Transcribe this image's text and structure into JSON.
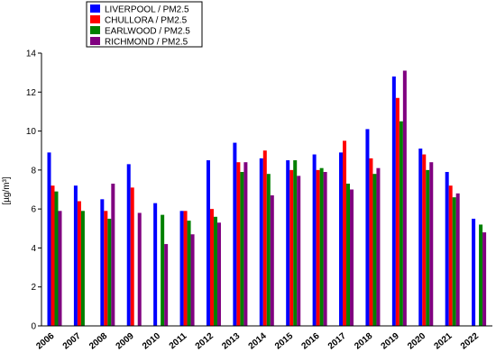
{
  "chart_data": {
    "type": "bar",
    "categories": [
      "2006",
      "2007",
      "2008",
      "2009",
      "2010",
      "2011",
      "2012",
      "2013",
      "2014",
      "2015",
      "2016",
      "2017",
      "2018",
      "2019",
      "2020",
      "2021",
      "2022"
    ],
    "series": [
      {
        "name": "LIVERPOOL / PM2.5",
        "color": "#0000ff",
        "values": [
          8.9,
          7.2,
          6.5,
          8.3,
          6.3,
          5.9,
          8.5,
          9.4,
          8.6,
          8.5,
          8.8,
          8.9,
          10.1,
          12.8,
          9.1,
          7.9,
          5.5
        ]
      },
      {
        "name": "CHULLORA / PM2.5",
        "color": "#ff0000",
        "values": [
          7.2,
          6.4,
          5.9,
          7.1,
          null,
          5.9,
          6.0,
          8.4,
          9.0,
          8.0,
          8.0,
          9.5,
          8.6,
          11.7,
          8.8,
          7.2,
          null
        ]
      },
      {
        "name": "EARLWOOD / PM2.5",
        "color": "#008000",
        "values": [
          6.9,
          5.9,
          5.5,
          null,
          5.7,
          5.4,
          5.6,
          7.9,
          7.8,
          8.5,
          8.1,
          7.3,
          7.8,
          10.5,
          8.0,
          6.6,
          5.2
        ]
      },
      {
        "name": "RICHMOND / PM2.5",
        "color": "#800080",
        "values": [
          5.9,
          null,
          7.3,
          5.8,
          4.2,
          4.7,
          5.3,
          8.4,
          6.7,
          7.7,
          7.9,
          7.0,
          8.1,
          13.1,
          8.4,
          6.8,
          4.8
        ]
      }
    ],
    "ylabel": "[µg/m³]",
    "ylim": [
      0,
      14
    ],
    "yticks": [
      0,
      2,
      4,
      6,
      8,
      10,
      12,
      14
    ],
    "grid": false,
    "legend_position": "top-left"
  }
}
